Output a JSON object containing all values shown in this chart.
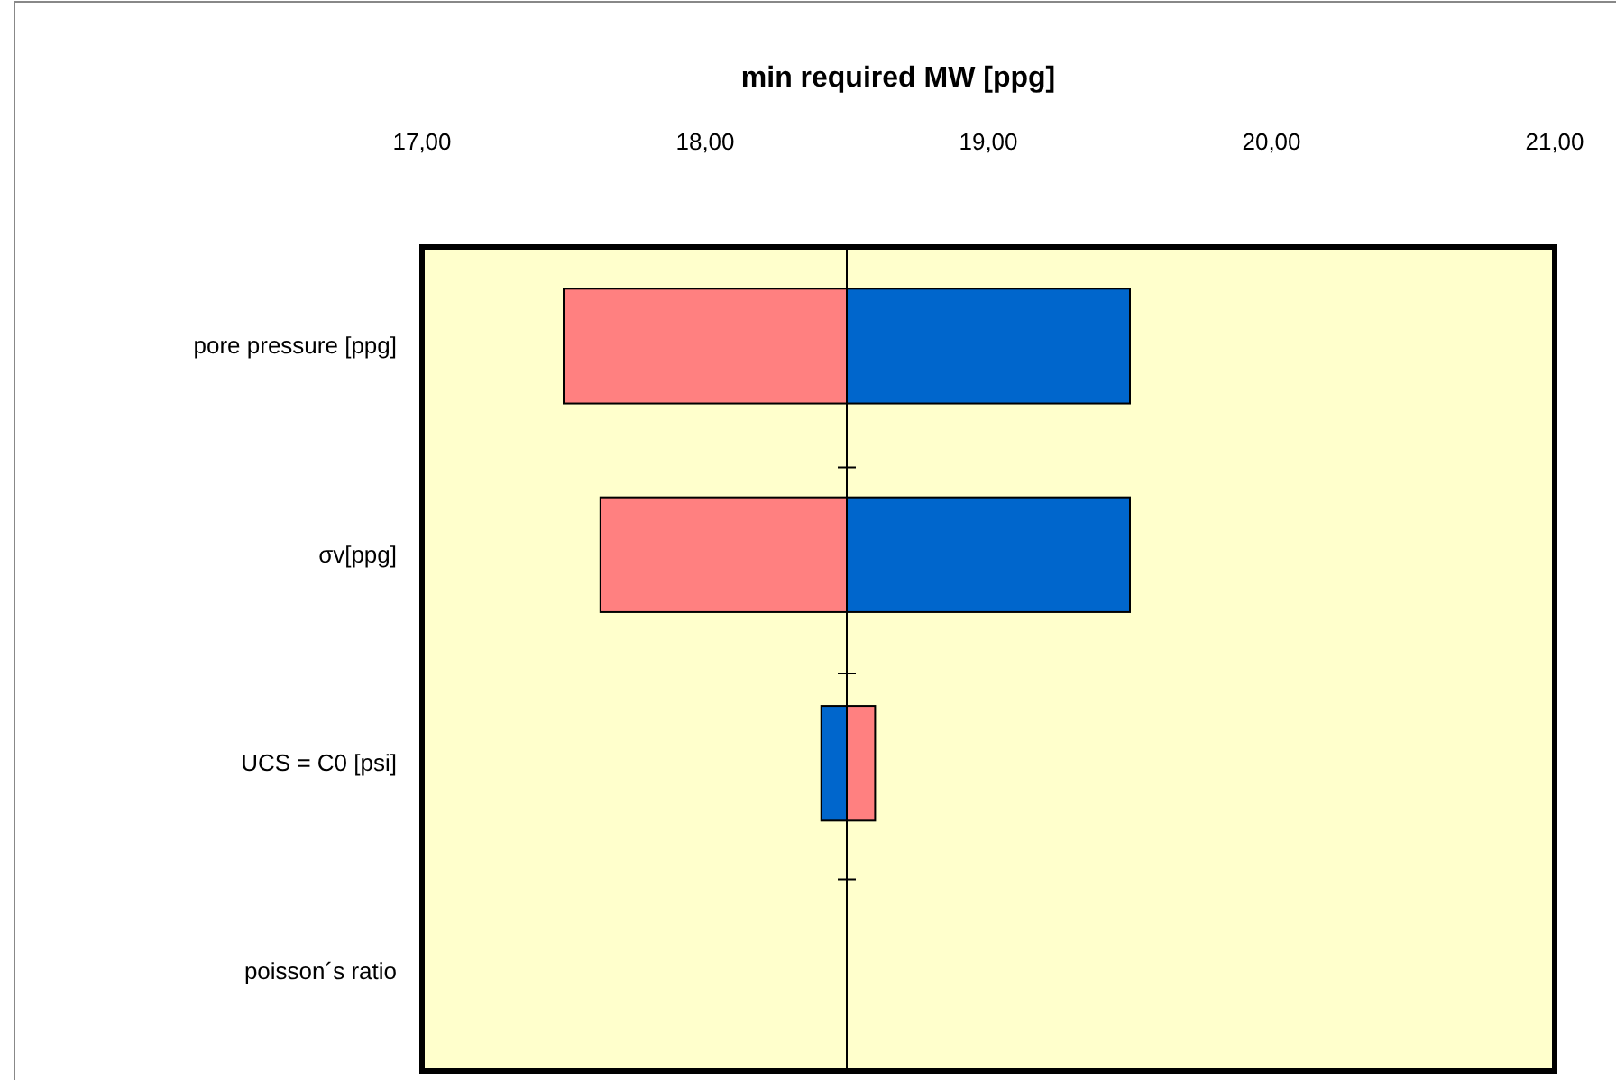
{
  "chart_data": {
    "type": "bar",
    "orientation": "horizontal",
    "title": "min required MW [ppg]",
    "categories": [
      "pore pressure [ppg]",
      "σv[ppg]",
      "UCS = C0 [psi]",
      "poisson´s ratio"
    ],
    "series": [
      {
        "color": "#ff8080",
        "base": [
          17.5,
          17.63,
          18.5,
          null
        ],
        "values": [
          1.0,
          0.87,
          0.1,
          null
        ]
      },
      {
        "color": "#0066cc",
        "base": [
          18.5,
          18.5,
          18.41,
          null
        ],
        "values": [
          1.0,
          1.0,
          0.09,
          null
        ]
      }
    ],
    "xlim": [
      17,
      21
    ],
    "xticks": [
      {
        "value": 17,
        "label": "17,00"
      },
      {
        "value": 18,
        "label": "18,00"
      },
      {
        "value": 19,
        "label": "19,00"
      },
      {
        "value": 20,
        "label": "20,00"
      },
      {
        "value": 21,
        "label": "21,00"
      }
    ],
    "ref_lines": [
      {
        "axis": "x",
        "value": 18.5,
        "color": "#000000"
      }
    ],
    "grid": false,
    "legend": false
  }
}
